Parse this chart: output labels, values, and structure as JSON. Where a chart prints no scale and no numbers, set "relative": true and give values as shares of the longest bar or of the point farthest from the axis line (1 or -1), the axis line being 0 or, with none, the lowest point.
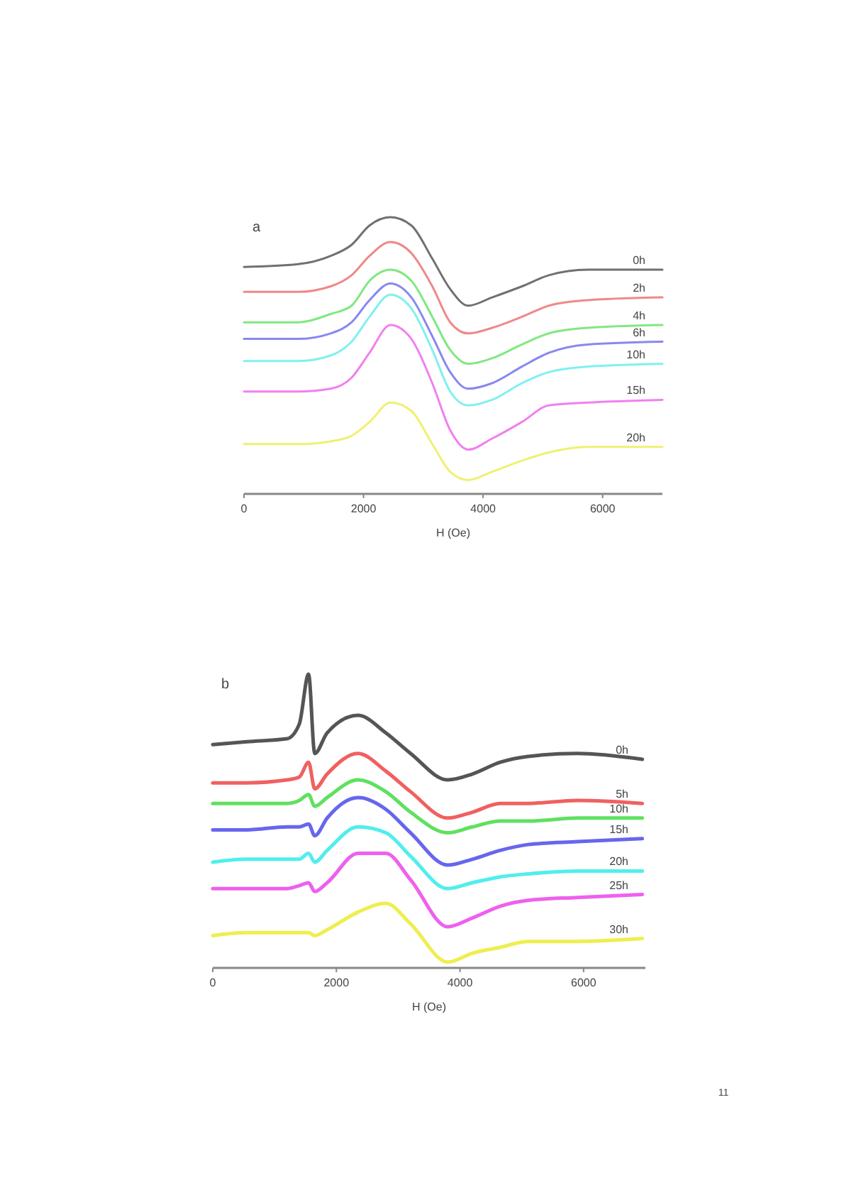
{
  "chart_data": [
    {
      "type": "line",
      "title": "a",
      "xlabel": "H (Oe)",
      "relative": true,
      "xlim": [
        0,
        7000
      ],
      "xticks": [
        0,
        2000,
        4000,
        6000
      ],
      "x": [
        0,
        900,
        1450,
        1800,
        2100,
        2450,
        2800,
        3150,
        3450,
        3750,
        4150,
        4650,
        5100,
        5750,
        7000
      ],
      "series": [
        {
          "name": "0h",
          "color": "#707070",
          "values": [
            0.82,
            0.83,
            0.86,
            0.9,
            0.97,
            1.0,
            0.97,
            0.85,
            0.74,
            0.68,
            0.71,
            0.75,
            0.79,
            0.81,
            0.81
          ]
        },
        {
          "name": "2h",
          "color": "#f08888",
          "values": [
            0.73,
            0.73,
            0.75,
            0.79,
            0.86,
            0.91,
            0.87,
            0.75,
            0.62,
            0.58,
            0.6,
            0.64,
            0.68,
            0.7,
            0.71
          ]
        },
        {
          "name": "4h",
          "color": "#80e880",
          "values": [
            0.62,
            0.62,
            0.65,
            0.68,
            0.77,
            0.81,
            0.77,
            0.64,
            0.52,
            0.47,
            0.49,
            0.54,
            0.58,
            0.6,
            0.61
          ]
        },
        {
          "name": "6h",
          "color": "#8888f0",
          "values": [
            0.56,
            0.56,
            0.58,
            0.62,
            0.7,
            0.76,
            0.71,
            0.57,
            0.44,
            0.38,
            0.4,
            0.46,
            0.51,
            0.54,
            0.55
          ]
        },
        {
          "name": "10h",
          "color": "#80f0f0",
          "values": [
            0.48,
            0.48,
            0.5,
            0.55,
            0.64,
            0.72,
            0.67,
            0.52,
            0.37,
            0.32,
            0.34,
            0.4,
            0.44,
            0.46,
            0.47
          ]
        },
        {
          "name": "15h",
          "color": "#f080f0",
          "values": [
            0.37,
            0.37,
            0.38,
            0.42,
            0.51,
            0.61,
            0.56,
            0.4,
            0.23,
            0.16,
            0.2,
            0.26,
            0.32,
            0.33,
            0.34
          ]
        },
        {
          "name": "20h",
          "color": "#f0f070",
          "values": [
            0.18,
            0.18,
            0.19,
            0.21,
            0.26,
            0.33,
            0.3,
            0.18,
            0.08,
            0.05,
            0.08,
            0.12,
            0.15,
            0.17,
            0.17
          ]
        }
      ]
    },
    {
      "type": "line",
      "title": "b",
      "xlabel": "H (Oe)",
      "relative": true,
      "xlim": [
        0,
        7000
      ],
      "xticks": [
        0,
        2000,
        4000,
        6000
      ],
      "x": [
        0,
        550,
        1200,
        1400,
        1550,
        1650,
        1850,
        2350,
        2800,
        3200,
        3800,
        4200,
        4650,
        5100,
        5900,
        6950
      ],
      "series": [
        {
          "name": "0h",
          "color": "#555555",
          "values": [
            0.76,
            0.77,
            0.78,
            0.83,
            1.0,
            0.73,
            0.8,
            0.86,
            0.8,
            0.73,
            0.64,
            0.66,
            0.7,
            0.72,
            0.73,
            0.71
          ]
        },
        {
          "name": "5h",
          "color": "#f06060",
          "values": [
            0.63,
            0.63,
            0.64,
            0.65,
            0.7,
            0.61,
            0.66,
            0.73,
            0.67,
            0.6,
            0.51,
            0.53,
            0.56,
            0.56,
            0.57,
            0.56
          ]
        },
        {
          "name": "10h",
          "color": "#60e060",
          "values": [
            0.56,
            0.56,
            0.56,
            0.57,
            0.59,
            0.55,
            0.58,
            0.64,
            0.6,
            0.53,
            0.46,
            0.48,
            0.5,
            0.5,
            0.51,
            0.51
          ]
        },
        {
          "name": "15h",
          "color": "#6666ee",
          "values": [
            0.47,
            0.47,
            0.48,
            0.48,
            0.49,
            0.45,
            0.51,
            0.58,
            0.54,
            0.46,
            0.35,
            0.37,
            0.4,
            0.42,
            0.43,
            0.44
          ]
        },
        {
          "name": "20h",
          "color": "#50eeee",
          "values": [
            0.36,
            0.37,
            0.37,
            0.37,
            0.39,
            0.36,
            0.4,
            0.48,
            0.46,
            0.38,
            0.27,
            0.29,
            0.31,
            0.32,
            0.33,
            0.33
          ]
        },
        {
          "name": "25h",
          "color": "#ee60ee",
          "values": [
            0.27,
            0.27,
            0.27,
            0.28,
            0.29,
            0.26,
            0.29,
            0.39,
            0.39,
            0.3,
            0.14,
            0.17,
            0.21,
            0.23,
            0.24,
            0.25
          ]
        },
        {
          "name": "30h",
          "color": "#eeee50",
          "values": [
            0.11,
            0.12,
            0.12,
            0.12,
            0.12,
            0.11,
            0.13,
            0.19,
            0.22,
            0.15,
            0.02,
            0.05,
            0.07,
            0.09,
            0.09,
            0.1
          ]
        }
      ],
      "annotations": [
        "11"
      ]
    }
  ]
}
